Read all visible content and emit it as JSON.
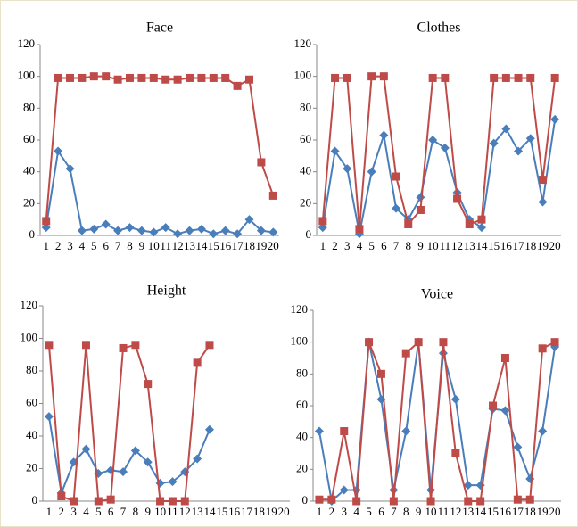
{
  "chart_data": [
    {
      "type": "line",
      "title": "Face",
      "categories": [
        "1",
        "2",
        "3",
        "4",
        "5",
        "6",
        "7",
        "8",
        "9",
        "10",
        "11",
        "12",
        "13",
        "14",
        "15",
        "16",
        "17",
        "18",
        "19",
        "20"
      ],
      "series": [
        {
          "color": "#4a7ebb",
          "marker": "diamond",
          "values": [
            5,
            53,
            42,
            3,
            4,
            7,
            3,
            5,
            3,
            2,
            5,
            1,
            3,
            4,
            1,
            3,
            1,
            10,
            3,
            2
          ]
        },
        {
          "color": "#be4b48",
          "marker": "square",
          "values": [
            9,
            99,
            99,
            99,
            100,
            100,
            98,
            99,
            99,
            99,
            98,
            98,
            99,
            99,
            99,
            99,
            94,
            98,
            46,
            25
          ]
        }
      ],
      "ylim": [
        0,
        120
      ],
      "yticks": [
        0,
        20,
        40,
        60,
        80,
        100,
        120
      ],
      "grid": false
    },
    {
      "type": "line",
      "title": "Clothes",
      "categories": [
        "1",
        "2",
        "3",
        "4",
        "5",
        "6",
        "7",
        "8",
        "9",
        "10",
        "11",
        "12",
        "13",
        "14",
        "15",
        "16",
        "17",
        "18",
        "19",
        "20"
      ],
      "series": [
        {
          "color": "#4a7ebb",
          "marker": "diamond",
          "values": [
            5,
            53,
            42,
            1,
            40,
            63,
            17,
            10,
            24,
            60,
            55,
            27,
            10,
            5,
            58,
            67,
            53,
            61,
            21,
            73
          ]
        },
        {
          "color": "#be4b48",
          "marker": "square",
          "values": [
            9,
            99,
            99,
            4,
            100,
            100,
            37,
            7,
            16,
            99,
            99,
            23,
            7,
            10,
            99,
            99,
            99,
            99,
            35,
            99
          ]
        }
      ],
      "ylim": [
        0,
        120
      ],
      "yticks": [
        0,
        20,
        40,
        60,
        80,
        100,
        120
      ],
      "grid": false
    },
    {
      "type": "line",
      "title": "Height",
      "categories": [
        "1",
        "2",
        "3",
        "4",
        "5",
        "6",
        "7",
        "8",
        "9",
        "10",
        "11",
        "12",
        "13",
        "14",
        "15",
        "16",
        "17",
        "18",
        "19",
        "20"
      ],
      "series": [
        {
          "color": "#4a7ebb",
          "marker": "diamond",
          "values": [
            52,
            5,
            24,
            32,
            17,
            19,
            18,
            31,
            24,
            11,
            12,
            18,
            26,
            44,
            null,
            null,
            null,
            null,
            null,
            null
          ]
        },
        {
          "color": "#be4b48",
          "marker": "square",
          "values": [
            96,
            3,
            0,
            96,
            0,
            1,
            94,
            96,
            72,
            0,
            0,
            0,
            85,
            96,
            null,
            null,
            null,
            null,
            null,
            null
          ]
        }
      ],
      "ylim": [
        0,
        120
      ],
      "yticks": [
        0,
        20,
        40,
        60,
        80,
        100,
        120
      ],
      "grid": false
    },
    {
      "type": "line",
      "title": "Voice",
      "categories": [
        "1",
        "2",
        "3",
        "4",
        "5",
        "6",
        "7",
        "8",
        "9",
        "10",
        "11",
        "12",
        "13",
        "14",
        "15",
        "16",
        "17",
        "18",
        "19",
        "20"
      ],
      "series": [
        {
          "color": "#4a7ebb",
          "marker": "diamond",
          "values": [
            44,
            0,
            7,
            7,
            100,
            64,
            7,
            44,
            100,
            7,
            93,
            64,
            10,
            10,
            58,
            57,
            34,
            14,
            44,
            97
          ]
        },
        {
          "color": "#be4b48",
          "marker": "square",
          "values": [
            1,
            1,
            44,
            0,
            100,
            80,
            0,
            93,
            100,
            0,
            100,
            30,
            0,
            0,
            60,
            90,
            1,
            1,
            96,
            100
          ]
        }
      ],
      "ylim": [
        0,
        120
      ],
      "yticks": [
        0,
        20,
        40,
        60,
        80,
        100,
        120
      ],
      "grid": false
    }
  ]
}
